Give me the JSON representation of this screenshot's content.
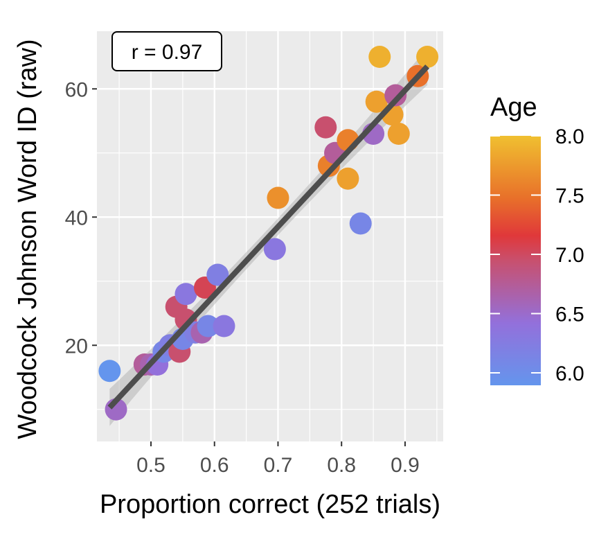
{
  "chart_data": {
    "type": "scatter",
    "title": "",
    "xlabel": "Proportion correct (252 trials)",
    "ylabel": "Woodcock Johnson Word ID (raw)",
    "xlim": [
      0.415,
      0.96
    ],
    "ylim": [
      5,
      69
    ],
    "x_ticks": [
      0.5,
      0.6,
      0.7,
      0.8,
      0.9
    ],
    "x_tick_labels": [
      "0.5",
      "0.6",
      "0.7",
      "0.8",
      "0.9"
    ],
    "y_ticks": [
      20,
      40,
      60
    ],
    "y_tick_labels": [
      "20",
      "40",
      "60"
    ],
    "grid": true,
    "annotation": "r = 0.97",
    "regression": {
      "x": [
        0.435,
        0.935
      ],
      "y": [
        10.3,
        63.5
      ],
      "confidence_band": true
    },
    "color_scale": {
      "title": "Age",
      "min": 6.0,
      "max": 8.0,
      "ticks": [
        "8.0",
        "7.5",
        "7.0",
        "6.5",
        "6.0"
      ],
      "colors": [
        "#6495ED",
        "#9370DB",
        "#C8506E",
        "#E0383A",
        "#E8702A",
        "#F0C030"
      ]
    },
    "legend_position": "right",
    "points": [
      {
        "x": 0.435,
        "y": 16,
        "age": 6.0
      },
      {
        "x": 0.445,
        "y": 10,
        "age": 6.6
      },
      {
        "x": 0.49,
        "y": 17,
        "age": 6.8
      },
      {
        "x": 0.5,
        "y": 17,
        "age": 6.7
      },
      {
        "x": 0.51,
        "y": 17,
        "age": 6.5
      },
      {
        "x": 0.52,
        "y": 19,
        "age": 6.2
      },
      {
        "x": 0.53,
        "y": 20,
        "age": 6.3
      },
      {
        "x": 0.54,
        "y": 26,
        "age": 7.0
      },
      {
        "x": 0.545,
        "y": 19,
        "age": 7.0
      },
      {
        "x": 0.55,
        "y": 21,
        "age": 6.2
      },
      {
        "x": 0.555,
        "y": 24,
        "age": 7.0
      },
      {
        "x": 0.555,
        "y": 28,
        "age": 6.4
      },
      {
        "x": 0.57,
        "y": 22,
        "age": 6.3
      },
      {
        "x": 0.58,
        "y": 22,
        "age": 6.7
      },
      {
        "x": 0.585,
        "y": 29,
        "age": 7.1
      },
      {
        "x": 0.59,
        "y": 23,
        "age": 6.2
      },
      {
        "x": 0.605,
        "y": 31,
        "age": 6.3
      },
      {
        "x": 0.615,
        "y": 23,
        "age": 6.4
      },
      {
        "x": 0.695,
        "y": 35,
        "age": 6.4
      },
      {
        "x": 0.7,
        "y": 43,
        "age": 7.7
      },
      {
        "x": 0.775,
        "y": 54,
        "age": 7.0
      },
      {
        "x": 0.78,
        "y": 48,
        "age": 7.6
      },
      {
        "x": 0.79,
        "y": 50,
        "age": 6.8
      },
      {
        "x": 0.81,
        "y": 46,
        "age": 7.8
      },
      {
        "x": 0.81,
        "y": 52,
        "age": 7.6
      },
      {
        "x": 0.83,
        "y": 39,
        "age": 6.2
      },
      {
        "x": 0.85,
        "y": 53,
        "age": 6.6
      },
      {
        "x": 0.855,
        "y": 58,
        "age": 7.8
      },
      {
        "x": 0.86,
        "y": 65,
        "age": 7.9
      },
      {
        "x": 0.88,
        "y": 56,
        "age": 7.8
      },
      {
        "x": 0.885,
        "y": 59,
        "age": 6.8
      },
      {
        "x": 0.89,
        "y": 53,
        "age": 7.8
      },
      {
        "x": 0.92,
        "y": 62,
        "age": 7.5
      },
      {
        "x": 0.935,
        "y": 65,
        "age": 7.9
      }
    ]
  }
}
